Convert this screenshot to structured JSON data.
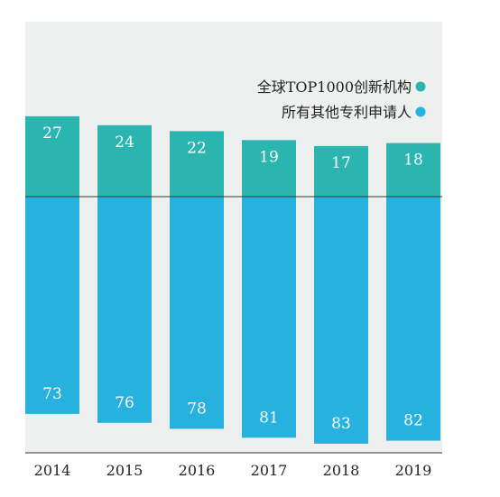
{
  "chart_data": {
    "type": "bar",
    "stacked": true,
    "categories": [
      "2014",
      "2015",
      "2016",
      "2017",
      "2018",
      "2019"
    ],
    "series": [
      {
        "name": "全球TOP1000创新机构",
        "values": [
          27,
          24,
          22,
          19,
          17,
          18
        ]
      },
      {
        "name": "所有其他专利申请人",
        "values": [
          73,
          76,
          78,
          81,
          83,
          82
        ]
      }
    ],
    "legend_position": "top-right",
    "grid": false
  },
  "colors": {
    "background": "#eef0ef",
    "top1000": "#2bb5b0",
    "others": "#26b1de",
    "axis": "#333333"
  }
}
